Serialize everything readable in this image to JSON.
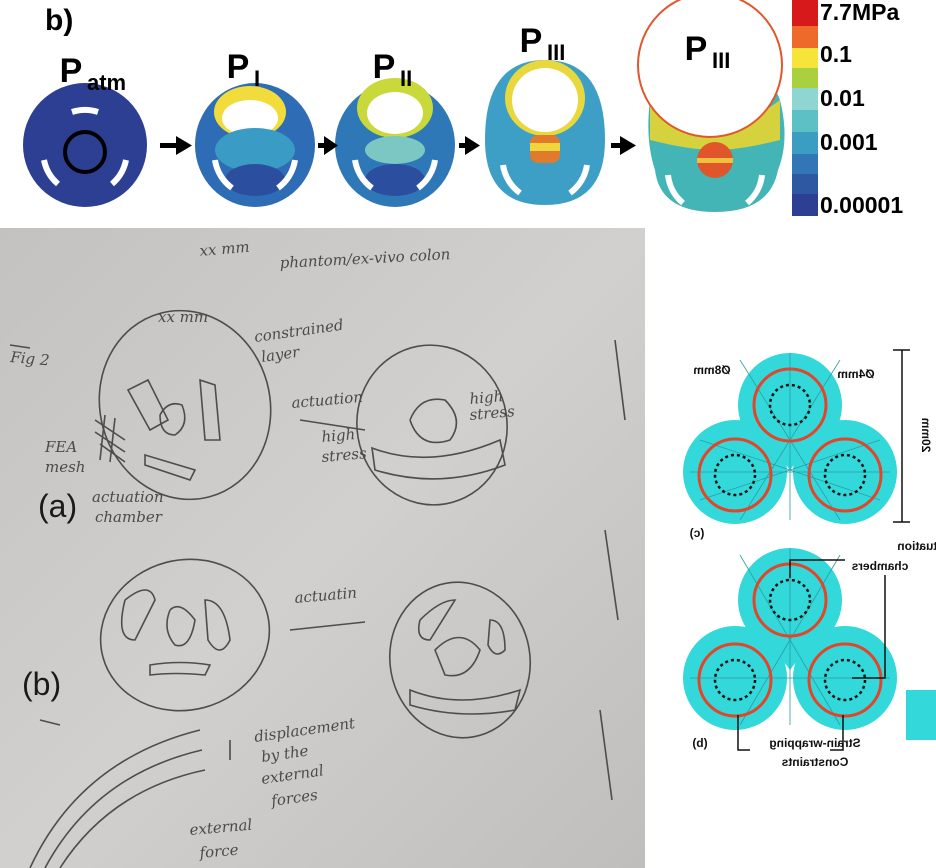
{
  "panel_b": {
    "label": "b)",
    "stages": [
      {
        "main": "P",
        "sub": "atm"
      },
      {
        "main": "P",
        "sub": "I"
      },
      {
        "main": "P",
        "sub": "II"
      },
      {
        "main": "P",
        "sub": "III"
      },
      {
        "main": "P",
        "sub": "III"
      }
    ],
    "colorbar": [
      "7.7MPa",
      "0.1",
      "0.01",
      "0.001",
      "0.00001"
    ]
  },
  "sketch": {
    "notes": [
      "phantom/ex-vivo colon",
      "xx mm",
      "Fig 2",
      "xx mm",
      "constrained",
      "layer",
      "actuation",
      "high",
      "stress",
      "high",
      "stress",
      "FEA",
      "mesh",
      "actuation",
      "chamber",
      "actuatin",
      "displacement",
      "by the",
      "external",
      "forces",
      "external",
      "force"
    ],
    "panel_labels": [
      "(a)",
      "(b)"
    ]
  },
  "schematic": {
    "labels": [
      "Ø8mm",
      "Ø4mm",
      "(c)",
      "Actuation",
      "chambers",
      "(b)",
      "Strain-wrapping",
      "Constraints",
      "20mm"
    ]
  }
}
